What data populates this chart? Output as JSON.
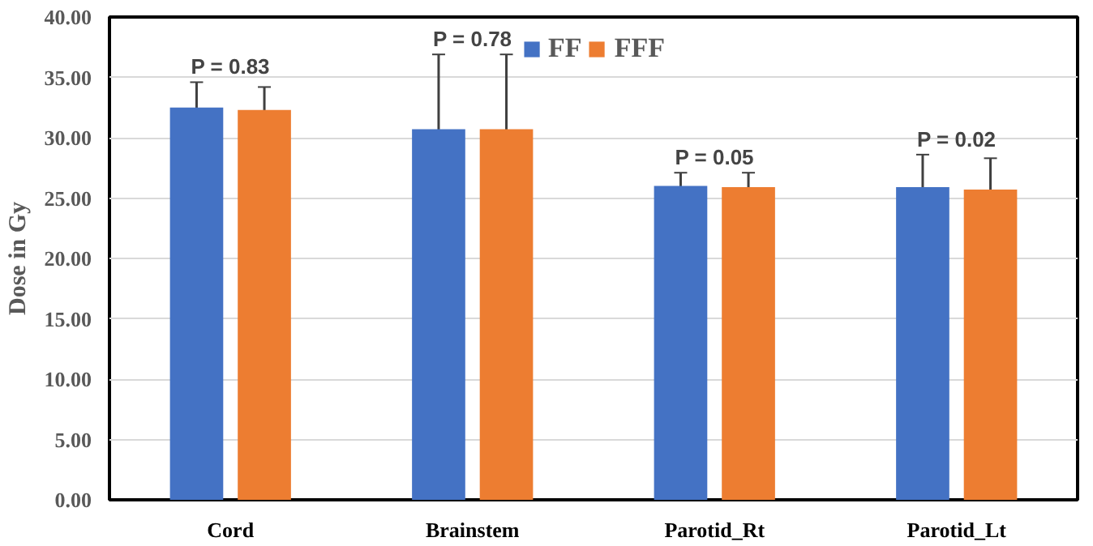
{
  "chart_data": {
    "type": "bar",
    "ylabel": "Dose in Gy",
    "categories": [
      "Cord",
      "Brainstem",
      "Parotid_Rt",
      "Parotid_Lt"
    ],
    "series": [
      {
        "name": "FF",
        "color": "#4472c4",
        "values": [
          32.5,
          30.7,
          26.0,
          25.9
        ],
        "errors": [
          2.1,
          6.2,
          1.1,
          2.7
        ]
      },
      {
        "name": "FFF",
        "color": "#ed7d31",
        "values": [
          32.3,
          30.7,
          25.9,
          25.7
        ],
        "errors": [
          1.9,
          6.2,
          1.2,
          2.6
        ]
      }
    ],
    "ylim": [
      0,
      40
    ],
    "yticks": [
      {
        "value": 0,
        "label": "0.00"
      },
      {
        "value": 5,
        "label": "5.00"
      },
      {
        "value": 10,
        "label": "10.00"
      },
      {
        "value": 15,
        "label": "15.00"
      },
      {
        "value": 20,
        "label": "20.00"
      },
      {
        "value": 25,
        "label": "25.00"
      },
      {
        "value": 30,
        "label": "30.00"
      },
      {
        "value": 35,
        "label": "35.00"
      },
      {
        "value": 40,
        "label": "40.00"
      }
    ],
    "annotations": [
      "P = 0.83",
      "P = 0.78",
      "P = 0.05",
      "P = 0.02"
    ],
    "grid": "y",
    "legend": "top"
  }
}
